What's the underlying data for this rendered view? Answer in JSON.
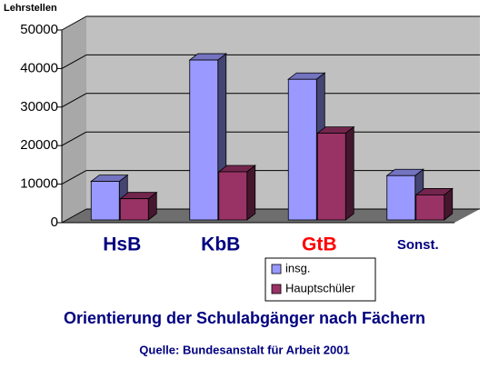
{
  "chart_data": {
    "type": "bar3d",
    "title": "Orientierung der Schulabgänger nach Fächern",
    "source": "Quelle: Bundesanstalt für Arbeit 2001",
    "y_label": "Lehrstellen",
    "categories": [
      "HsB",
      "KbB",
      "GtB",
      "Sonst."
    ],
    "category_colors": [
      "#000080",
      "#000080",
      "#ff0000",
      "#000080"
    ],
    "series": [
      {
        "name": "insg.",
        "color": "#9999ff",
        "values": [
          10000,
          41500,
          36500,
          11500
        ]
      },
      {
        "name": "Hauptschüler",
        "color": "#993366",
        "values": [
          5500,
          12500,
          22500,
          6500
        ]
      }
    ],
    "ylim": [
      0,
      50000
    ],
    "yticks": [
      0,
      10000,
      20000,
      30000,
      40000,
      50000
    ],
    "grid": true
  }
}
